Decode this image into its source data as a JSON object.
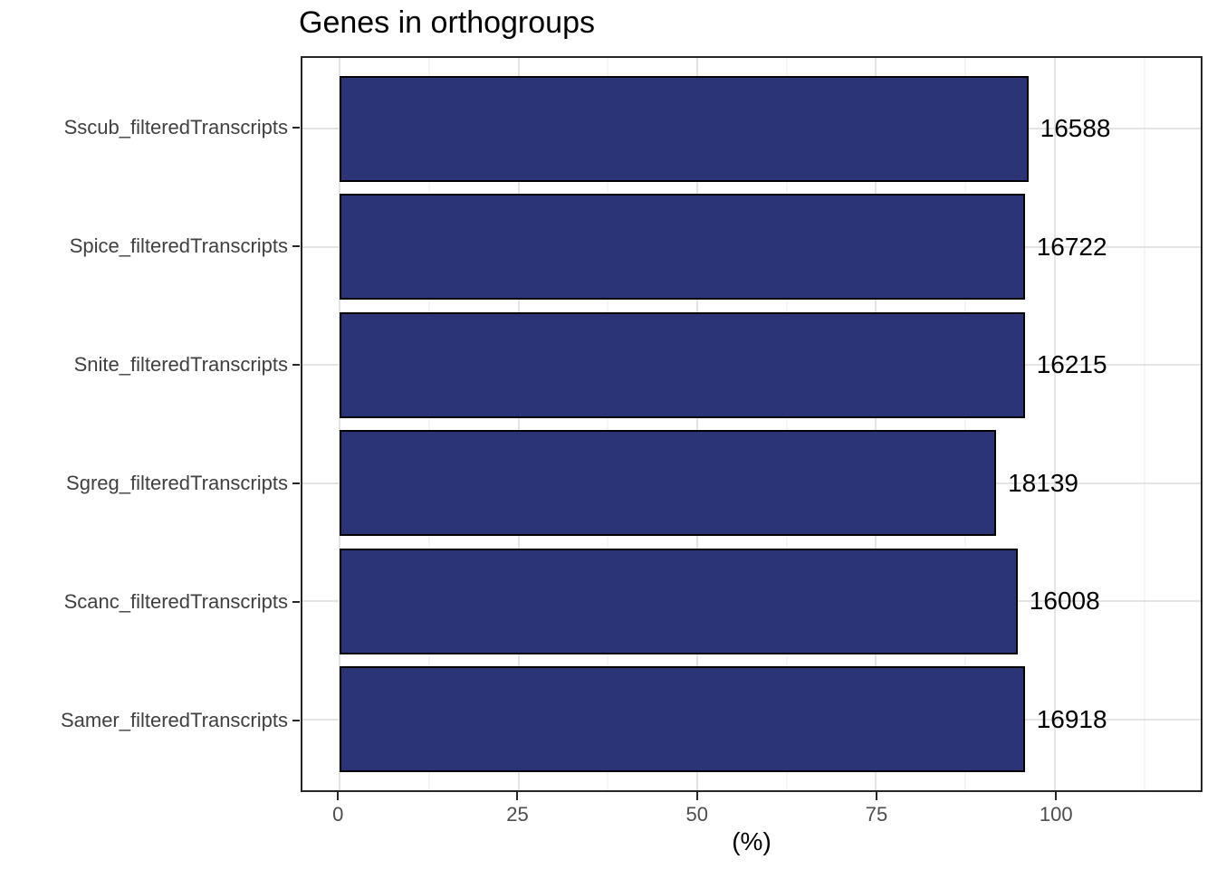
{
  "chart_data": {
    "type": "bar",
    "orientation": "horizontal",
    "title": "Genes in orthogroups",
    "xlabel": "(%)",
    "ylabel": "",
    "legend_position": "none",
    "categories": [
      "Sscub_filteredTranscripts",
      "Spice_filteredTranscripts",
      "Snite_filteredTranscripts",
      "Sgreg_filteredTranscripts",
      "Scanc_filteredTranscripts",
      "Samer_filteredTranscripts"
    ],
    "values_percent": [
      96.3,
      95.8,
      95.8,
      91.8,
      94.8,
      95.8
    ],
    "bar_labels": [
      "16588",
      "16722",
      "16215",
      "18139",
      "16008",
      "16918"
    ],
    "x_ticks": [
      0,
      25,
      50,
      75,
      100
    ],
    "x_minor_ticks": [
      12.5,
      37.5,
      62.5,
      87.5,
      112.5
    ],
    "xlim": [
      -5.2,
      120.4
    ],
    "grid": {
      "vertical": "major and minor",
      "horizontal": "major at category centers"
    },
    "colors": {
      "bar_fill": "#2c3478",
      "bar_stroke": "#000000",
      "grid_major": "#e4e4e4",
      "grid_minor": "#eeeeee",
      "panel_border": "#262626",
      "axis_tick_label": "#4d4d4d",
      "category_label": "#404040",
      "title_text": "#000000",
      "background": "#ffffff"
    }
  }
}
